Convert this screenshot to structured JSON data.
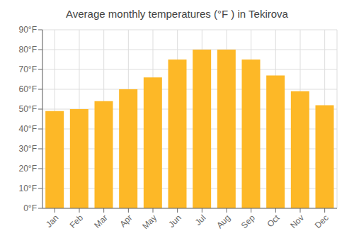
{
  "chart_data": {
    "type": "bar",
    "title": "Average monthly temperatures (°F ) in Tekirova",
    "categories": [
      "Jan",
      "Feb",
      "Mar",
      "Apr",
      "May",
      "Jun",
      "Jul",
      "Aug",
      "Sep",
      "Oct",
      "Nov",
      "Dec"
    ],
    "values": [
      49,
      50,
      54,
      60,
      66,
      75,
      80,
      80,
      75,
      67,
      59,
      52
    ],
    "color": "#FDB827",
    "ylim": [
      0,
      90
    ],
    "yticks": [
      {
        "value": 0,
        "label": "0°F"
      },
      {
        "value": 10,
        "label": "10°F"
      },
      {
        "value": 20,
        "label": "20°F"
      },
      {
        "value": 30,
        "label": "30°F"
      },
      {
        "value": 40,
        "label": "40°F"
      },
      {
        "value": 50,
        "label": "50°F"
      },
      {
        "value": 60,
        "label": "60°F"
      },
      {
        "value": 70,
        "label": "70°F"
      },
      {
        "value": 80,
        "label": "80°F"
      },
      {
        "value": 90,
        "label": "90°F"
      }
    ],
    "grid": true
  }
}
